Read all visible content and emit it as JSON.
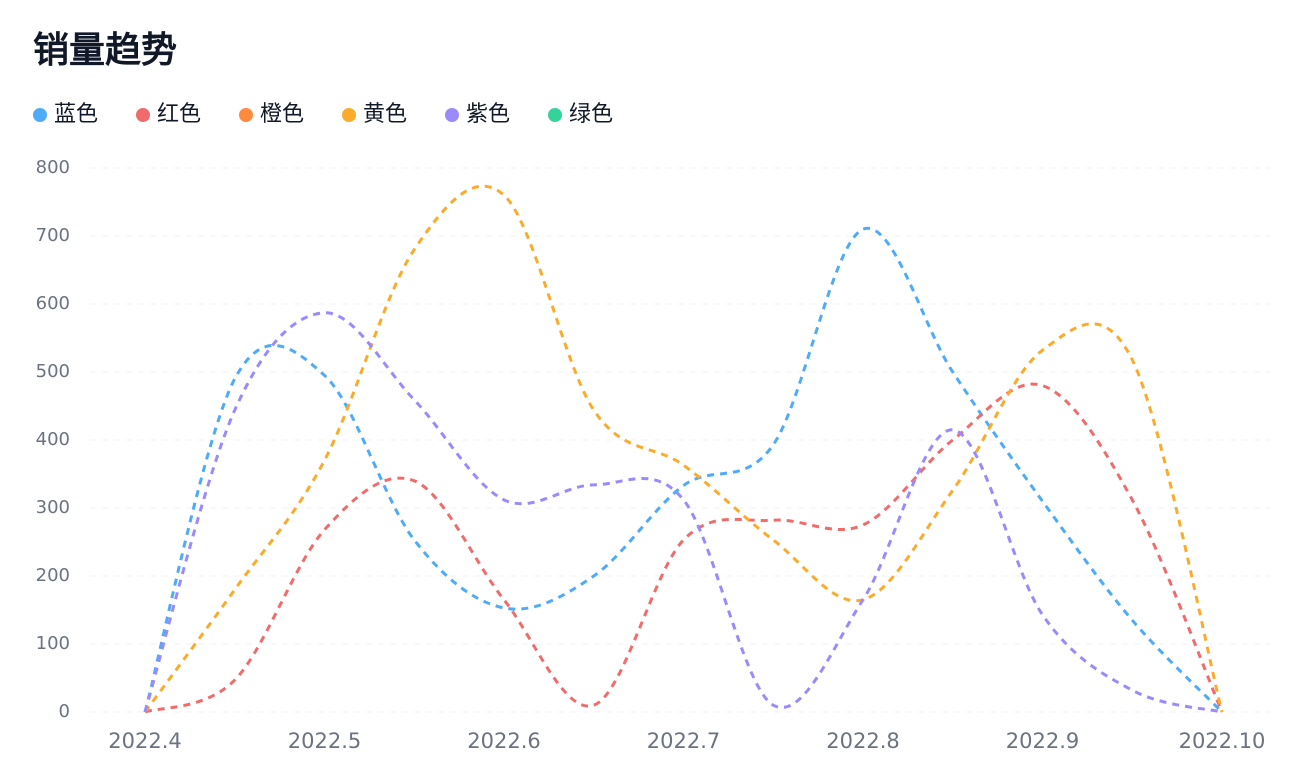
{
  "chart_data": {
    "type": "line",
    "title": "销量趋势",
    "categories": [
      "2022.4",
      null,
      "2022.5",
      null,
      "2022.6",
      null,
      "2022.7",
      null,
      "2022.8",
      null,
      "2022.9",
      null,
      "2022.10"
    ],
    "ylim": [
      0,
      800
    ],
    "yticks": [
      0,
      100,
      200,
      300,
      400,
      500,
      600,
      700,
      800
    ],
    "grid": true,
    "legend": "top-left",
    "smooth": true,
    "dashed": true,
    "series": [
      {
        "name": "蓝色",
        "color": "#4dabf7",
        "values": [
          0,
          490,
          495,
          253,
          153,
          200,
          333,
          393,
          710,
          500,
          310,
          135,
          0
        ]
      },
      {
        "name": "红色",
        "color": "#f06c6c",
        "values": [
          0,
          47,
          268,
          340,
          165,
          10,
          253,
          282,
          275,
          400,
          480,
          312,
          0
        ]
      },
      {
        "name": "橙色",
        "color": "#ff8a3d",
        "values": [
          null,
          null,
          null,
          null,
          null,
          null,
          null,
          null,
          null,
          null,
          null,
          null,
          null
        ]
      },
      {
        "name": "黄色",
        "color": "#fbab2a",
        "values": [
          0,
          180,
          370,
          680,
          760,
          444,
          363,
          253,
          165,
          326,
          532,
          518,
          0
        ]
      },
      {
        "name": "紫色",
        "color": "#9b8afb",
        "values": [
          0,
          444,
          587,
          459,
          312,
          334,
          312,
          10,
          165,
          415,
          143,
          32,
          0
        ]
      },
      {
        "name": "绿色",
        "color": "#34d399",
        "values": [
          null,
          null,
          null,
          null,
          null,
          null,
          null,
          null,
          null,
          null,
          null,
          null,
          null
        ]
      }
    ]
  }
}
